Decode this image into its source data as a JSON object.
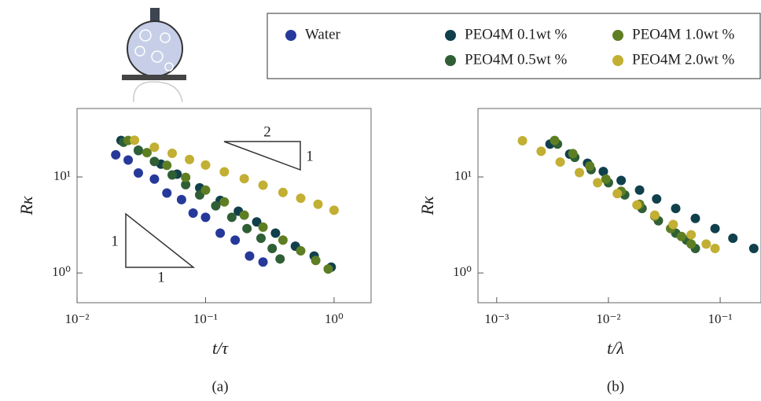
{
  "chart_data": [
    {
      "type": "scatter",
      "caption": "(a)",
      "x_label": "t/τ",
      "y_label": "Rκ",
      "xscale": "log",
      "yscale": "log",
      "xlim": [
        0.01,
        1.94
      ],
      "ylim": [
        0.49,
        51.6
      ],
      "xticks": [
        {
          "value": 0.01,
          "label": "10⁻²"
        },
        {
          "value": 0.1,
          "label": "10⁻¹"
        },
        {
          "value": 1,
          "label": "10⁰"
        }
      ],
      "yticks": [
        {
          "value": 1,
          "label": "10⁰"
        },
        {
          "value": 10,
          "label": "10¹"
        }
      ],
      "annotations": [
        "2",
        "1",
        "1",
        "1"
      ],
      "series": [
        {
          "name": "Water",
          "color": "#26399a",
          "x": [
            0.02,
            0.025,
            0.03,
            0.04,
            0.05,
            0.065,
            0.08,
            0.1,
            0.13,
            0.17,
            0.22,
            0.28
          ],
          "values": [
            17,
            15,
            11,
            9.5,
            6.8,
            5.8,
            4.2,
            3.8,
            2.6,
            2.2,
            1.5,
            1.3
          ]
        },
        {
          "name": "PEO4M 0.1wt %",
          "color": "#10404c",
          "x": [
            0.022,
            0.03,
            0.045,
            0.06,
            0.09,
            0.13,
            0.18,
            0.25,
            0.35,
            0.5,
            0.7,
            0.95
          ],
          "values": [
            24,
            18.8,
            13.6,
            10.7,
            7.7,
            5.7,
            4.4,
            3.4,
            2.6,
            1.9,
            1.5,
            1.15
          ]
        },
        {
          "name": "PEO4M 0.5wt %",
          "color": "#2f5f35",
          "x": [
            0.023,
            0.03,
            0.04,
            0.055,
            0.07,
            0.09,
            0.12,
            0.16,
            0.21,
            0.27,
            0.33,
            0.38
          ],
          "values": [
            23,
            19,
            14.5,
            10.5,
            8.3,
            6.5,
            5,
            3.8,
            2.9,
            2.3,
            1.8,
            1.4
          ]
        },
        {
          "name": "PEO4M 1.0wt %",
          "color": "#5e7e23",
          "x": [
            0.025,
            0.035,
            0.05,
            0.07,
            0.1,
            0.14,
            0.2,
            0.28,
            0.4,
            0.55,
            0.72,
            0.9
          ],
          "values": [
            24,
            17.9,
            13.2,
            9.9,
            7.3,
            5.5,
            4,
            3,
            2.2,
            1.7,
            1.35,
            1.1
          ]
        },
        {
          "name": "PEO4M 2.0wt %",
          "color": "#c2af33",
          "x": [
            0.028,
            0.04,
            0.055,
            0.075,
            0.1,
            0.14,
            0.2,
            0.28,
            0.4,
            0.55,
            0.75,
            1.0
          ],
          "values": [
            24.1,
            20.4,
            17.6,
            15.2,
            13.3,
            11.3,
            9.6,
            8.2,
            6.9,
            6,
            5.2,
            4.5
          ]
        }
      ]
    },
    {
      "type": "scatter",
      "caption": "(b)",
      "x_label": "t/λ",
      "y_label": "Rκ",
      "xscale": "log",
      "yscale": "log",
      "xlim": [
        0.00068,
        0.232
      ],
      "ylim": [
        0.49,
        51.6
      ],
      "xticks": [
        {
          "value": 0.001,
          "label": "10⁻³"
        },
        {
          "value": 0.01,
          "label": "10⁻²"
        },
        {
          "value": 0.1,
          "label": "10⁻¹"
        }
      ],
      "yticks": [
        {
          "value": 1,
          "label": "10⁰"
        },
        {
          "value": 10,
          "label": "10¹"
        }
      ],
      "series": [
        {
          "color": "#10404c",
          "x": [
            0.003,
            0.0045,
            0.0065,
            0.009,
            0.013,
            0.019,
            0.027,
            0.04,
            0.06,
            0.09,
            0.13,
            0.2
          ],
          "values": [
            22,
            17.3,
            13.9,
            11.4,
            9.2,
            7.3,
            5.9,
            4.7,
            3.7,
            2.9,
            2.3,
            1.8
          ]
        },
        {
          "color": "#2f5f35",
          "x": [
            0.0035,
            0.005,
            0.007,
            0.01,
            0.014,
            0.02,
            0.028,
            0.04,
            0.05,
            0.06
          ],
          "values": [
            22,
            16,
            11.9,
            8.7,
            6.5,
            4.7,
            3.5,
            2.6,
            2.2,
            1.8
          ]
        },
        {
          "color": "#5e7e23",
          "x": [
            0.0033,
            0.0048,
            0.0068,
            0.0095,
            0.013,
            0.019,
            0.026,
            0.036,
            0.045,
            0.055
          ],
          "values": [
            24,
            17.5,
            13,
            9.5,
            7.1,
            5.2,
            3.9,
            2.9,
            2.4,
            2.0
          ]
        },
        {
          "color": "#c2af33",
          "x": [
            0.0017,
            0.0025,
            0.0037,
            0.0055,
            0.008,
            0.012,
            0.018,
            0.026,
            0.038,
            0.055,
            0.075,
            0.09
          ],
          "values": [
            23.8,
            18.5,
            14.3,
            11.1,
            8.7,
            6.7,
            5.1,
            4.0,
            3.2,
            2.5,
            2.0,
            1.8
          ]
        }
      ]
    }
  ]
}
